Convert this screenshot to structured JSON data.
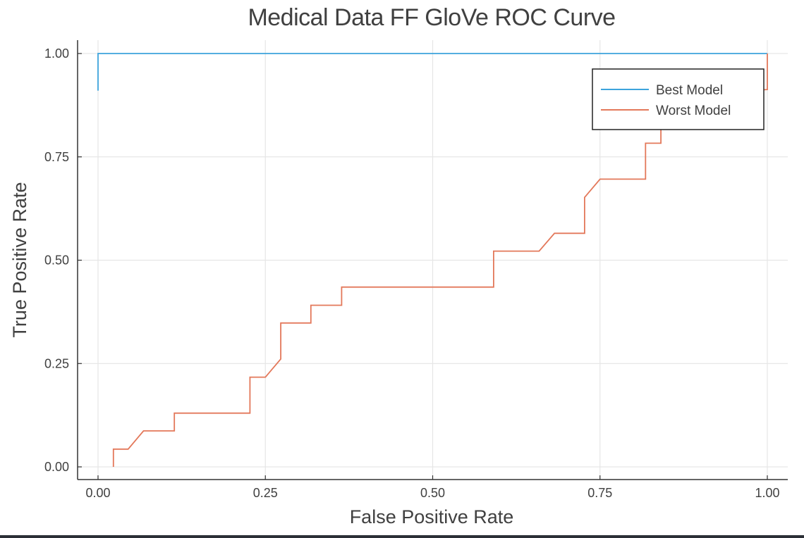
{
  "chart_data": {
    "type": "line",
    "title": "Medical Data FF GloVe ROC Curve",
    "xlabel": "False Positive Rate",
    "ylabel": "True Positive Rate",
    "xlim": [
      0,
      1
    ],
    "ylim": [
      0,
      1
    ],
    "xticks": [
      0,
      0.25,
      0.5,
      0.75,
      1
    ],
    "yticks": [
      0,
      0.25,
      0.5,
      0.75,
      1
    ],
    "xtick_labels": [
      "0.00",
      "0.25",
      "0.50",
      "0.75",
      "1.00"
    ],
    "ytick_labels": [
      "0.00",
      "0.25",
      "0.50",
      "0.75",
      "1.00"
    ],
    "grid": true,
    "legend_position": "top-right",
    "series": [
      {
        "name": "Best Model",
        "color": "#3da4dc",
        "x": [
          0,
          0,
          1,
          1
        ],
        "y": [
          0.91,
          1.0,
          1.0,
          1.0
        ]
      },
      {
        "name": "Worst Model",
        "color": "#e3785a",
        "x": [
          0.023,
          0.023,
          0.045,
          0.068,
          0.114,
          0.114,
          0.227,
          0.227,
          0.25,
          0.273,
          0.273,
          0.318,
          0.318,
          0.364,
          0.364,
          0.591,
          0.591,
          0.659,
          0.682,
          0.727,
          0.727,
          0.75,
          0.818,
          0.818,
          0.841,
          0.841,
          0.864,
          1.0,
          1.0
        ],
        "y": [
          0.0,
          0.043,
          0.043,
          0.087,
          0.087,
          0.13,
          0.13,
          0.217,
          0.217,
          0.261,
          0.348,
          0.348,
          0.391,
          0.391,
          0.435,
          0.435,
          0.522,
          0.522,
          0.565,
          0.565,
          0.652,
          0.696,
          0.696,
          0.783,
          0.783,
          0.83,
          0.9,
          0.913,
          1.0
        ]
      }
    ]
  }
}
